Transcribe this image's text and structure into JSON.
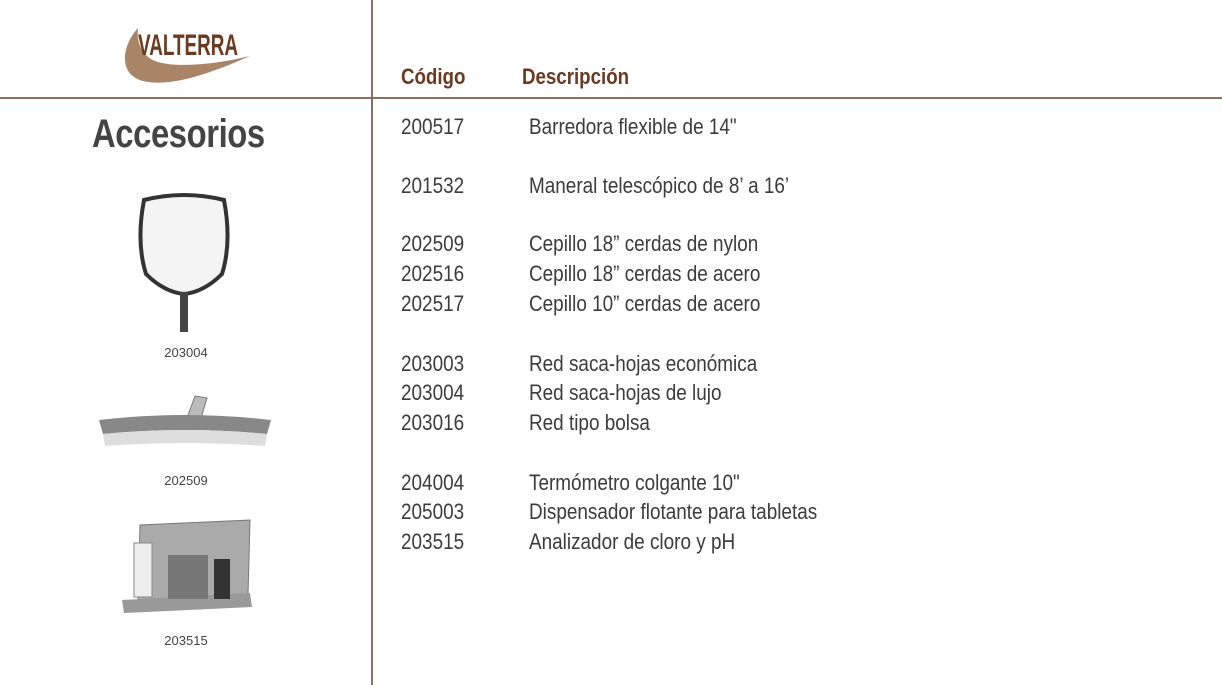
{
  "logo": {
    "text": "VALTERRA",
    "colors": {
      "text": "#6b3a1f",
      "swoosh": "#a98466"
    }
  },
  "section_title": "Accesorios",
  "headers": {
    "code": "Código",
    "description": "Descripción"
  },
  "items": [
    {
      "code": "200517",
      "description": "Barredora flexible de 14\""
    },
    {
      "code": "201532",
      "description": "Maneral telescópico de 8’ a 16’"
    },
    {
      "code": "202509",
      "description": "Cepillo 18” cerdas de nylon"
    },
    {
      "code": "202516",
      "description": "Cepillo 18” cerdas de acero"
    },
    {
      "code": "202517",
      "description": "Cepillo 10” cerdas de acero"
    },
    {
      "code": "203003",
      "description": "Red saca-hojas económica"
    },
    {
      "code": "203004",
      "description": "Red saca-hojas de lujo"
    },
    {
      "code": "203016",
      "description": "Red tipo bolsa"
    },
    {
      "code": "204004",
      "description": "Termómetro colgante 10\""
    },
    {
      "code": "205003",
      "description": "Dispensador flotante para tabletas"
    },
    {
      "code": "203515",
      "description": "Analizador de cloro y pH"
    }
  ],
  "images": [
    {
      "caption": "203004",
      "icon": "leaf-net-icon"
    },
    {
      "caption": "202509",
      "icon": "brush-icon"
    },
    {
      "caption": "203515",
      "icon": "test-kit-icon"
    }
  ]
}
